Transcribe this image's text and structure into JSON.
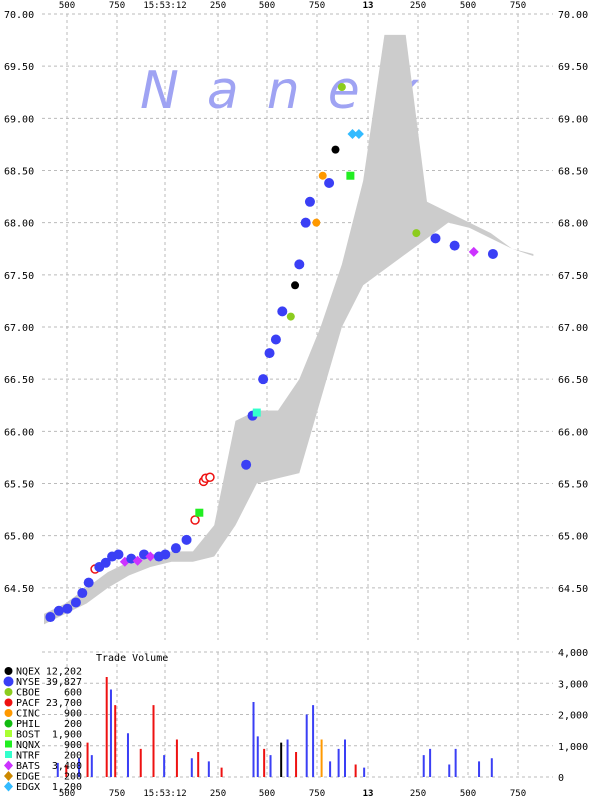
{
  "chart_data": [
    {
      "type": "scatter",
      "watermark": "Nanex",
      "ylim": [
        64.0,
        70.0
      ],
      "price_ticks": [
        "64.50",
        "65.00",
        "65.50",
        "66.00",
        "66.50",
        "67.00",
        "67.50",
        "68.00",
        "68.50",
        "69.00",
        "69.50",
        "70.00"
      ],
      "y_tick_top_left": "70.00",
      "x_ticks_top": [
        "500",
        "750",
        "15:53:12",
        "250",
        "500",
        "750",
        "13",
        "250",
        "500",
        "750"
      ],
      "x_ticks_bottom": [
        "500",
        "750",
        "15:53:12",
        "250",
        "500",
        "750",
        "13",
        "250",
        "500",
        "750"
      ],
      "series_colors": {
        "NQEX": "#000000",
        "NYSE": "#3a3ff5",
        "CBOE": "#8ccc1e",
        "PACF": "#ee1111",
        "CINC": "#ff9900",
        "PHIL": "#11bb11",
        "BOST": "#aaff33",
        "NQNX": "#22ee22",
        "NTRF": "#33ffcc",
        "BATS": "#cc33ff",
        "EDGE": "#cc8800",
        "EDGX": "#33bbff"
      },
      "nbbo_band": {
        "x": [
          0,
          20,
          40,
          60,
          80,
          100,
          120,
          140,
          160,
          180,
          200,
          220,
          240,
          260,
          280,
          300,
          320,
          340,
          360,
          380,
          400,
          420,
          440,
          460
        ],
        "low": [
          64.15,
          64.25,
          64.35,
          64.5,
          64.62,
          64.7,
          64.75,
          64.75,
          64.8,
          65.1,
          65.5,
          65.55,
          65.6,
          66.3,
          67.0,
          67.4,
          67.55,
          67.7,
          67.85,
          68.0,
          67.95,
          67.85,
          67.75,
          67.68
        ],
        "high": [
          64.25,
          64.35,
          64.5,
          64.65,
          64.75,
          64.82,
          64.85,
          64.85,
          65.1,
          66.1,
          66.2,
          66.2,
          66.5,
          67.0,
          67.6,
          68.4,
          69.8,
          69.8,
          68.2,
          68.1,
          68.0,
          67.9,
          67.75,
          67.7
        ]
      },
      "trades": [
        {
          "x": 6,
          "p": 64.22,
          "ex": "NYSE"
        },
        {
          "x": 14,
          "p": 64.28,
          "ex": "NYSE"
        },
        {
          "x": 22,
          "p": 64.3,
          "ex": "NYSE"
        },
        {
          "x": 30,
          "p": 64.36,
          "ex": "NYSE"
        },
        {
          "x": 36,
          "p": 64.45,
          "ex": "NYSE"
        },
        {
          "x": 42,
          "p": 64.55,
          "ex": "NYSE"
        },
        {
          "x": 48,
          "p": 64.68,
          "ex": "PACF"
        },
        {
          "x": 52,
          "p": 64.7,
          "ex": "NYSE"
        },
        {
          "x": 58,
          "p": 64.74,
          "ex": "NYSE"
        },
        {
          "x": 64,
          "p": 64.8,
          "ex": "NYSE"
        },
        {
          "x": 70,
          "p": 64.82,
          "ex": "NYSE"
        },
        {
          "x": 76,
          "p": 64.75,
          "ex": "BATS"
        },
        {
          "x": 82,
          "p": 64.78,
          "ex": "NYSE"
        },
        {
          "x": 88,
          "p": 64.76,
          "ex": "BATS"
        },
        {
          "x": 94,
          "p": 64.82,
          "ex": "NYSE"
        },
        {
          "x": 100,
          "p": 64.8,
          "ex": "BATS"
        },
        {
          "x": 108,
          "p": 64.8,
          "ex": "NYSE"
        },
        {
          "x": 114,
          "p": 64.82,
          "ex": "NYSE"
        },
        {
          "x": 124,
          "p": 64.88,
          "ex": "NYSE"
        },
        {
          "x": 134,
          "p": 64.96,
          "ex": "NYSE"
        },
        {
          "x": 142,
          "p": 65.15,
          "ex": "PACF"
        },
        {
          "x": 146,
          "p": 65.22,
          "ex": "NQNX"
        },
        {
          "x": 150,
          "p": 65.52,
          "ex": "PACF"
        },
        {
          "x": 152,
          "p": 65.55,
          "ex": "PACF"
        },
        {
          "x": 156,
          "p": 65.56,
          "ex": "PACF"
        },
        {
          "x": 190,
          "p": 65.68,
          "ex": "NYSE"
        },
        {
          "x": 196,
          "p": 66.15,
          "ex": "NYSE"
        },
        {
          "x": 200,
          "p": 66.18,
          "ex": "NTRF"
        },
        {
          "x": 206,
          "p": 66.5,
          "ex": "NYSE"
        },
        {
          "x": 212,
          "p": 66.75,
          "ex": "NYSE"
        },
        {
          "x": 218,
          "p": 66.88,
          "ex": "NYSE"
        },
        {
          "x": 224,
          "p": 67.15,
          "ex": "NYSE"
        },
        {
          "x": 232,
          "p": 67.1,
          "ex": "CBOE"
        },
        {
          "x": 236,
          "p": 67.4,
          "ex": "NQEX"
        },
        {
          "x": 240,
          "p": 67.6,
          "ex": "NYSE"
        },
        {
          "x": 246,
          "p": 68.0,
          "ex": "NYSE"
        },
        {
          "x": 250,
          "p": 68.2,
          "ex": "NYSE"
        },
        {
          "x": 256,
          "p": 68.0,
          "ex": "CINC"
        },
        {
          "x": 262,
          "p": 68.45,
          "ex": "CINC"
        },
        {
          "x": 268,
          "p": 68.38,
          "ex": "NYSE"
        },
        {
          "x": 274,
          "p": 68.7,
          "ex": "NQEX"
        },
        {
          "x": 280,
          "p": 69.3,
          "ex": "CBOE"
        },
        {
          "x": 288,
          "p": 68.45,
          "ex": "NQNX"
        },
        {
          "x": 290,
          "p": 68.85,
          "ex": "EDGX"
        },
        {
          "x": 296,
          "p": 68.85,
          "ex": "EDGX"
        },
        {
          "x": 350,
          "p": 67.9,
          "ex": "CBOE"
        },
        {
          "x": 368,
          "p": 67.85,
          "ex": "NYSE"
        },
        {
          "x": 386,
          "p": 67.78,
          "ex": "NYSE"
        },
        {
          "x": 404,
          "p": 67.72,
          "ex": "BATS"
        },
        {
          "x": 422,
          "p": 67.7,
          "ex": "NYSE"
        }
      ],
      "trade_volume_title": "Trade Volume",
      "volume_ylim": [
        0,
        4000
      ],
      "volume_ticks": [
        "0",
        "1,000",
        "2,000",
        "3,000",
        "4,000"
      ],
      "volume_bars": [
        {
          "x": 12,
          "v": 450,
          "ex": "NYSE"
        },
        {
          "x": 20,
          "v": 380,
          "ex": "PACF"
        },
        {
          "x": 32,
          "v": 600,
          "ex": "NYSE"
        },
        {
          "x": 40,
          "v": 1100,
          "ex": "PACF"
        },
        {
          "x": 44,
          "v": 700,
          "ex": "NYSE"
        },
        {
          "x": 58,
          "v": 3200,
          "ex": "PACF"
        },
        {
          "x": 62,
          "v": 2800,
          "ex": "NYSE"
        },
        {
          "x": 66,
          "v": 2300,
          "ex": "PACF"
        },
        {
          "x": 78,
          "v": 1400,
          "ex": "NYSE"
        },
        {
          "x": 90,
          "v": 900,
          "ex": "PACF"
        },
        {
          "x": 102,
          "v": 2300,
          "ex": "PACF"
        },
        {
          "x": 112,
          "v": 700,
          "ex": "NYSE"
        },
        {
          "x": 124,
          "v": 1200,
          "ex": "PACF"
        },
        {
          "x": 138,
          "v": 600,
          "ex": "NYSE"
        },
        {
          "x": 144,
          "v": 800,
          "ex": "PACF"
        },
        {
          "x": 154,
          "v": 500,
          "ex": "NYSE"
        },
        {
          "x": 166,
          "v": 300,
          "ex": "PACF"
        },
        {
          "x": 196,
          "v": 2400,
          "ex": "NYSE"
        },
        {
          "x": 200,
          "v": 1300,
          "ex": "NYSE"
        },
        {
          "x": 206,
          "v": 900,
          "ex": "PACF"
        },
        {
          "x": 212,
          "v": 700,
          "ex": "NYSE"
        },
        {
          "x": 222,
          "v": 1100,
          "ex": "NQEX"
        },
        {
          "x": 228,
          "v": 1200,
          "ex": "NYSE"
        },
        {
          "x": 236,
          "v": 800,
          "ex": "PACF"
        },
        {
          "x": 246,
          "v": 2000,
          "ex": "NYSE"
        },
        {
          "x": 252,
          "v": 2300,
          "ex": "NYSE"
        },
        {
          "x": 260,
          "v": 1200,
          "ex": "CINC"
        },
        {
          "x": 268,
          "v": 500,
          "ex": "NYSE"
        },
        {
          "x": 276,
          "v": 900,
          "ex": "NYSE"
        },
        {
          "x": 282,
          "v": 1200,
          "ex": "NYSE"
        },
        {
          "x": 292,
          "v": 400,
          "ex": "PACF"
        },
        {
          "x": 300,
          "v": 300,
          "ex": "NYSE"
        },
        {
          "x": 356,
          "v": 700,
          "ex": "NYSE"
        },
        {
          "x": 362,
          "v": 900,
          "ex": "NYSE"
        },
        {
          "x": 380,
          "v": 400,
          "ex": "NYSE"
        },
        {
          "x": 386,
          "v": 900,
          "ex": "NYSE"
        },
        {
          "x": 408,
          "v": 500,
          "ex": "NYSE"
        },
        {
          "x": 420,
          "v": 600,
          "ex": "NYSE"
        }
      ]
    }
  ],
  "legend": [
    {
      "ex": "NQEX",
      "count": "12,202",
      "marker": "circle"
    },
    {
      "ex": "NYSE",
      "count": "39,827",
      "marker": "circle-large"
    },
    {
      "ex": "CBOE",
      "count": "600",
      "marker": "circle"
    },
    {
      "ex": "PACF",
      "count": "23,700",
      "marker": "circle"
    },
    {
      "ex": "CINC",
      "count": "900",
      "marker": "circle"
    },
    {
      "ex": "PHIL",
      "count": "200",
      "marker": "circle"
    },
    {
      "ex": "BOST",
      "count": "1,900",
      "marker": "square"
    },
    {
      "ex": "NQNX",
      "count": "900",
      "marker": "square"
    },
    {
      "ex": "NTRF",
      "count": "200",
      "marker": "square"
    },
    {
      "ex": "BATS",
      "count": "3,400",
      "marker": "diamond"
    },
    {
      "ex": "EDGE",
      "count": "200",
      "marker": "diamond"
    },
    {
      "ex": "EDGX",
      "count": "1,200",
      "marker": "diamond"
    }
  ]
}
